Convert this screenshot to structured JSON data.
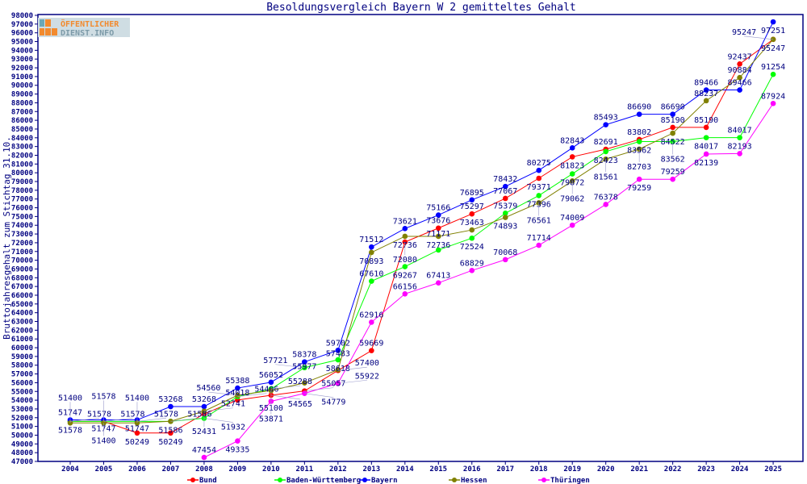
{
  "logo_text": "ÖFFENTLICHER DIENST.INFO",
  "chart_data": {
    "type": "line",
    "title": "Besoldungsvergleich Bayern W 2 gemitteltes Gehalt",
    "xlabel": "",
    "ylabel": "Bruttojahresgehalt zum Stichtag 31.10.",
    "ylim": [
      47000,
      98000
    ],
    "ytick_step": 1000,
    "grid": false,
    "legend": "bottom",
    "x": [
      2004,
      2005,
      2006,
      2007,
      2008,
      2009,
      2010,
      2011,
      2012,
      2013,
      2014,
      2015,
      2016,
      2017,
      2018,
      2019,
      2020,
      2021,
      2022,
      2023,
      2024,
      2025
    ],
    "series": [
      {
        "name": "Bund",
        "color": "#ff0000",
        "values": [
          51578,
          51578,
          50249,
          50249,
          52431,
          54018,
          54565,
          55057,
          57400,
          59669,
          72080,
          73676,
          75297,
          77067,
          79371,
          81823,
          82691,
          83802,
          85190,
          85190,
          92437,
          95247
        ]
      },
      {
        "name": "Baden-Württemberg",
        "color": "#00ff00",
        "values": [
          51578,
          51578,
          51578,
          51586,
          51932,
          54406,
          55288,
          57721,
          58618,
          67610,
          69267,
          71171,
          72524,
          75379,
          77396,
          79872,
          82423,
          83562,
          83562,
          84017,
          84017,
          91254
        ]
      },
      {
        "name": "Bayern",
        "color": "#0000ff",
        "values": [
          51747,
          51747,
          51747,
          53268,
          53268,
          55388,
          56052,
          58378,
          59702,
          71512,
          73621,
          75166,
          76895,
          78432,
          80275,
          82843,
          85493,
          86690,
          86690,
          89466,
          89466,
          97251
        ]
      },
      {
        "name": "Hessen",
        "color": "#808000",
        "values": [
          51400,
          51400,
          51400,
          51586,
          52741,
          54560,
          55100,
          55977,
          57483,
          70893,
          72736,
          72736,
          73463,
          74893,
          76561,
          79062,
          81561,
          82703,
          84522,
          88237,
          90884,
          95247
        ]
      },
      {
        "name": "Thüringen",
        "color": "#ff00ff",
        "values": [
          null,
          null,
          null,
          null,
          47454,
          49335,
          53871,
          54779,
          55922,
          62916,
          66156,
          67413,
          68829,
          70068,
          71714,
          74009,
          76378,
          79259,
          79259,
          82139,
          82193,
          87924
        ]
      }
    ]
  }
}
